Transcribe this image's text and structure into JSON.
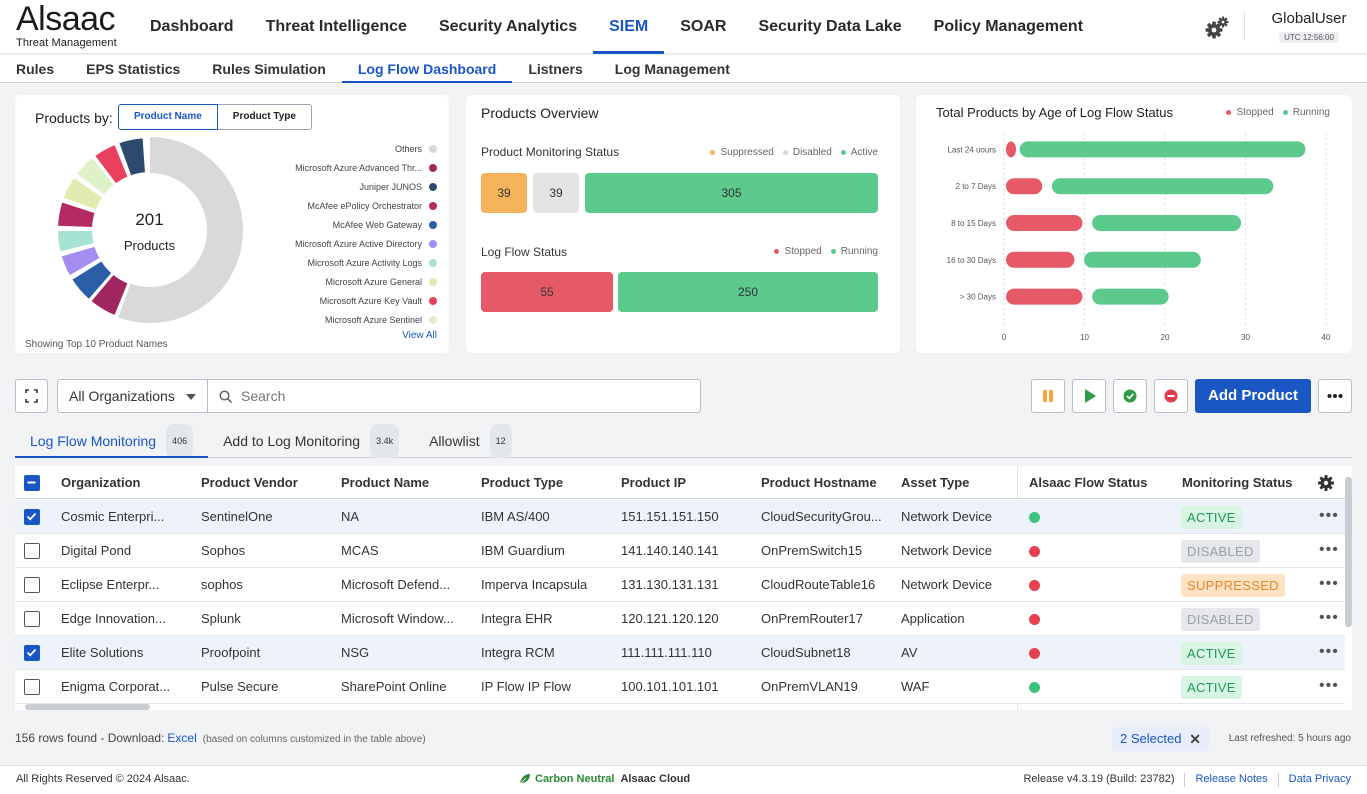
{
  "brand": {
    "name": "Alsaac",
    "tagline": "Threat Management"
  },
  "main_nav": [
    "Dashboard",
    "Threat Intelligence",
    "Security Analytics",
    "SIEM",
    "SOAR",
    "Security Data Lake",
    "Policy Management"
  ],
  "main_nav_active": "SIEM",
  "user": {
    "name": "GlobalUser",
    "time": "UTC 12:56:00"
  },
  "sub_nav": [
    "Rules",
    "EPS Statistics",
    "Rules Simulation",
    "Log Flow Dashboard",
    "Listners",
    "Log Management"
  ],
  "sub_nav_active": "Log Flow Dashboard",
  "products_by": {
    "label": "Products by:",
    "options": [
      "Product Name",
      "Product Type"
    ],
    "selected": "Product Name",
    "total": "201",
    "total_label": "Products",
    "legend": [
      {
        "name": "Others",
        "color": "#d9d9d9"
      },
      {
        "name": "Microsoft Azure Advanced Thr...",
        "color": "#a0265f"
      },
      {
        "name": "Juniper JUNOS",
        "color": "#2c4a6e"
      },
      {
        "name": "McAfee ePolicy Orchestrator",
        "color": "#b42a62"
      },
      {
        "name": "McAfee Web Gateway",
        "color": "#2a5fa8"
      },
      {
        "name": "Microsoft Azure Active Directory",
        "color": "#a58cf0"
      },
      {
        "name": "Microsoft Azure Activity Logs",
        "color": "#a6e3d2"
      },
      {
        "name": "Microsoft Azure General",
        "color": "#e1ebb0"
      },
      {
        "name": "Microsoft Azure Key Vault",
        "color": "#e8405d"
      },
      {
        "name": "Microsoft Azure Sentinel",
        "color": "#dff1c8"
      }
    ],
    "footer": "Showing Top 10 Product Names",
    "view_all": "View All"
  },
  "overview": {
    "title": "Products Overview",
    "monitoring_title": "Product Monitoring Status",
    "monitoring_legend": [
      {
        "name": "Suppressed",
        "color": "#f7b35b"
      },
      {
        "name": "Disabled",
        "color": "#d9d9d9"
      },
      {
        "name": "Active",
        "color": "#5cc98d"
      }
    ],
    "monitoring_values": [
      "39",
      "39",
      "305"
    ],
    "logflow_title": "Log Flow Status",
    "logflow_legend": [
      {
        "name": "Stopped",
        "color": "#e55a66"
      },
      {
        "name": "Running",
        "color": "#5cc98d"
      }
    ],
    "logflow_values": [
      "55",
      "250"
    ]
  },
  "age_chart_text": {
    "title": "Total Products by Age of Log Flow Status"
  },
  "chart_data": {
    "type": "bar",
    "orientation": "horizontal",
    "title": "Total Products by Age of Log Flow Status",
    "categories": [
      "Last 24 uours",
      "2 to 7 Days",
      "8 to 15 Days",
      "16 to 30 Days",
      "> 30 Days"
    ],
    "series": [
      {
        "name": "Stopped",
        "color": "#e55a66",
        "values": [
          1,
          5,
          10,
          9,
          10
        ]
      },
      {
        "name": "Running",
        "color": "#5cc98d",
        "values": [
          36,
          28,
          19,
          15,
          10
        ]
      }
    ],
    "xlim": [
      0,
      40
    ],
    "xticks": [
      "0",
      "10",
      "20",
      "30",
      "40"
    ],
    "legend": "top-right",
    "grid": true
  },
  "toolbar": {
    "org_select": "All Organizations",
    "search_placeholder": "Search",
    "add_product": "Add Product"
  },
  "tabs": [
    {
      "label": "Log Flow Monitoring",
      "count": "406"
    },
    {
      "label": "Add to Log Monitoring",
      "count": "3.4k"
    },
    {
      "label": "Allowlist",
      "count": "12"
    }
  ],
  "table": {
    "headers": [
      "Organization",
      "Product Vendor",
      "Product Name",
      "Product Type",
      "Product IP",
      "Product Hostname",
      "Asset Type",
      "Alsaac Flow Status",
      "Monitoring Status"
    ],
    "rows": [
      {
        "checked": true,
        "org": "Cosmic Enterpri...",
        "vendor": "SentinelOne",
        "name": "NA",
        "type": "IBM AS/400",
        "ip": "151.151.151.150",
        "host": "CloudSecurityGrou...",
        "asset": "Network Device",
        "flow": "green",
        "status": "ACTIVE"
      },
      {
        "checked": false,
        "org": "Digital Pond",
        "vendor": "Sophos",
        "name": "MCAS",
        "type": "IBM Guardium",
        "ip": "141.140.140.141",
        "host": "OnPremSwitch15",
        "asset": "Network Device",
        "flow": "red",
        "status": "DISABLED"
      },
      {
        "checked": false,
        "org": "Eclipse Enterpr...",
        "vendor": "sophos",
        "name": "Microsoft Defend...",
        "type": "Imperva Incapsula",
        "ip": "131.130.131.131",
        "host": "CloudRouteTable16",
        "asset": "Network Device",
        "flow": "red",
        "status": "SUPPRESSED"
      },
      {
        "checked": false,
        "org": "Edge Innovation...",
        "vendor": "Splunk",
        "name": "Microsoft Window...",
        "type": "Integra EHR",
        "ip": "120.121.120.120",
        "host": "OnPremRouter17",
        "asset": "Application",
        "flow": "red",
        "status": "DISABLED"
      },
      {
        "checked": true,
        "org": "Elite Solutions",
        "vendor": "Proofpoint",
        "name": "NSG",
        "type": "Integra RCM",
        "ip": "111.111.111.110",
        "host": "CloudSubnet18",
        "asset": "AV",
        "flow": "red",
        "status": "ACTIVE"
      },
      {
        "checked": false,
        "org": "Enigma Corporat...",
        "vendor": "Pulse Secure",
        "name": "SharePoint Online",
        "type": "IP Flow IP Flow",
        "ip": "100.101.101.101",
        "host": "OnPremVLAN19",
        "asset": "WAF",
        "flow": "green",
        "status": "ACTIVE"
      }
    ]
  },
  "footer": {
    "rows_found": "156 rows found - Download:",
    "excel": "Excel",
    "note": "(based on columns customized in the table above)",
    "selected": "2 Selected",
    "last_refreshed": "Last refreshed: 5 hours ago"
  },
  "bottom": {
    "copyright": "All Rights Reserved © 2024 Alsaac.",
    "carbon": "Carbon Neutral",
    "cloud": "Alsaac Cloud",
    "release": "Release v4.3.19 (Build: 23782)",
    "release_notes": "Release Notes",
    "privacy": "Data Privacy"
  },
  "colors": {
    "accent": "#1a56c4",
    "active_bg": "#d8f5e3",
    "active_fg": "#1f9a55",
    "disabled_bg": "#e6e7ea",
    "disabled_fg": "#9aa0a8",
    "suppressed_bg": "#fde2c3",
    "suppressed_fg": "#e8862a",
    "green": "#3cc47c",
    "red": "#e5404f"
  }
}
